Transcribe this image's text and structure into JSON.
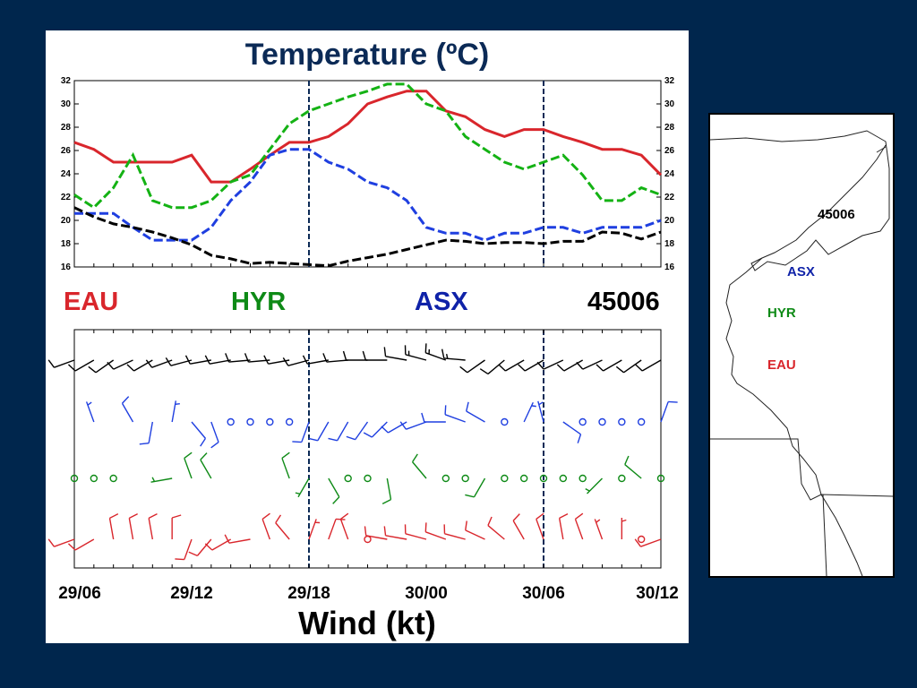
{
  "temperature_title": "Temperature (ºC)",
  "wind_title": "Wind (kt)",
  "colors": {
    "background": "#00264d",
    "EAU": "#d9262c",
    "HYR": "#0e8a16",
    "ASX": "#0f22a8",
    "45006": "#000000"
  },
  "station_labels": [
    {
      "text": "EAU",
      "color": "#d9262c"
    },
    {
      "text": "HYR",
      "color": "#0e8a16"
    },
    {
      "text": "ASX",
      "color": "#0f22a8"
    },
    {
      "text": "45006",
      "color": "#000000"
    }
  ],
  "x_tick_labels": [
    "29/06",
    "29/12",
    "29/18",
    "30/00",
    "30/06",
    "30/12"
  ],
  "map": {
    "labels": [
      {
        "text": "45006",
        "color": "#000000"
      },
      {
        "text": "ASX",
        "color": "#0f22a8"
      },
      {
        "text": "HYR",
        "color": "#0e8a16"
      },
      {
        "text": "EAU",
        "color": "#d9262c"
      }
    ]
  },
  "chart_data": [
    {
      "type": "line",
      "title": "Temperature (ºC)",
      "x": [
        0,
        1,
        2,
        3,
        4,
        5,
        6,
        7,
        8,
        9,
        10,
        11,
        12,
        13,
        14,
        15,
        16,
        17,
        18,
        19,
        20,
        21,
        22,
        23,
        24,
        25,
        26,
        27,
        28,
        29,
        30
      ],
      "x_tick_labels": [
        "29/06",
        "29/12",
        "29/18",
        "30/00",
        "30/06",
        "30/12"
      ],
      "ylim": [
        16,
        32
      ],
      "yticks": [
        16,
        18,
        20,
        22,
        24,
        26,
        28,
        30,
        32
      ],
      "vertical_markers": [
        12,
        24
      ],
      "series": [
        {
          "name": "EAU",
          "color": "#d9262c",
          "dashed": false,
          "values": [
            26.7,
            26.1,
            25.0,
            25.0,
            25.0,
            25.0,
            25.6,
            23.3,
            23.3,
            24.4,
            25.6,
            26.7,
            26.7,
            27.2,
            28.3,
            30.0,
            30.6,
            31.1,
            31.1,
            29.4,
            28.9,
            27.8,
            27.2,
            27.8,
            27.8,
            27.2,
            26.7,
            26.1,
            26.1,
            25.6,
            23.9
          ]
        },
        {
          "name": "HYR",
          "color": "#14b214",
          "dashed": true,
          "values": [
            22.2,
            21.1,
            22.8,
            25.6,
            21.7,
            21.1,
            21.1,
            21.7,
            23.3,
            23.9,
            26.1,
            28.3,
            29.4,
            30.0,
            30.6,
            31.1,
            31.7,
            31.7,
            30.0,
            29.4,
            27.2,
            26.1,
            25.0,
            24.4,
            25.0,
            25.6,
            23.9,
            21.7,
            21.7,
            22.8,
            22.2
          ]
        },
        {
          "name": "ASX",
          "color": "#1f3fe0",
          "dashed": true,
          "values": [
            20.6,
            20.6,
            20.6,
            19.4,
            18.3,
            18.3,
            18.3,
            19.4,
            21.7,
            23.3,
            25.6,
            26.1,
            26.1,
            25.0,
            24.4,
            23.3,
            22.8,
            21.7,
            19.4,
            18.9,
            18.9,
            18.3,
            18.9,
            18.9,
            19.4,
            19.4,
            18.9,
            19.4,
            19.4,
            19.4,
            20.0
          ]
        },
        {
          "name": "45006",
          "color": "#000000",
          "dashed": true,
          "values": [
            21.1,
            20.3,
            19.7,
            19.4,
            19.0,
            18.5,
            17.9,
            17.0,
            16.7,
            16.3,
            16.4,
            16.3,
            16.2,
            16.1,
            16.5,
            16.8,
            17.1,
            17.5,
            17.9,
            18.3,
            18.2,
            18.0,
            18.1,
            18.1,
            18.0,
            18.2,
            18.2,
            19.0,
            18.9,
            18.4,
            19.0
          ]
        }
      ]
    },
    {
      "type": "scatter",
      "title": "Wind (kt)",
      "x_tick_labels": [
        "29/06",
        "29/12",
        "29/18",
        "30/00",
        "30/06",
        "30/12"
      ],
      "vertical_markers": [
        12,
        24
      ],
      "rows": [
        "45006",
        "ASX",
        "HYR",
        "EAU"
      ],
      "series": [
        {
          "name": "45006",
          "color": "#000000",
          "x": [
            0,
            1,
            2,
            3,
            4,
            5,
            6,
            7,
            8,
            9,
            10,
            11,
            12,
            13,
            14,
            15,
            16,
            17,
            18,
            19,
            20,
            21,
            22,
            23,
            24,
            25,
            26,
            27,
            28,
            29,
            30
          ],
          "direction": [
            250,
            240,
            235,
            245,
            240,
            250,
            255,
            260,
            260,
            265,
            265,
            260,
            255,
            260,
            265,
            270,
            270,
            280,
            285,
            290,
            275,
            235,
            230,
            240,
            240,
            245,
            240,
            245,
            240,
            235,
            240
          ],
          "speed": [
            10,
            10,
            10,
            10,
            10,
            10,
            10,
            10,
            10,
            10,
            10,
            10,
            10,
            10,
            10,
            10,
            10,
            10,
            15,
            15,
            15,
            10,
            10,
            10,
            10,
            10,
            10,
            10,
            10,
            10,
            10
          ]
        },
        {
          "name": "ASX",
          "color": "#1f3fe0",
          "x": [
            1,
            3,
            4,
            5,
            6,
            7,
            8,
            9,
            10,
            11,
            12,
            13,
            14,
            15,
            16,
            17,
            18,
            19,
            20,
            21,
            22,
            23,
            24,
            25,
            26,
            27,
            28,
            29,
            30
          ],
          "direction": [
            340,
            330,
            190,
            10,
            140,
            160,
            0,
            0,
            0,
            0,
            200,
            210,
            210,
            215,
            225,
            240,
            250,
            270,
            290,
            300,
            0,
            25,
            345,
            125,
            0,
            0,
            0,
            0,
            20
          ],
          "speed": [
            5,
            10,
            10,
            5,
            10,
            10,
            0,
            0,
            0,
            0,
            10,
            10,
            10,
            10,
            10,
            10,
            10,
            10,
            10,
            10,
            0,
            5,
            5,
            10,
            0,
            0,
            0,
            0,
            10
          ]
        },
        {
          "name": "HYR",
          "color": "#0e8a16",
          "x": [
            0,
            1,
            2,
            5,
            6,
            7,
            11,
            12,
            13,
            14,
            15,
            16,
            18,
            19,
            20,
            21,
            22,
            23,
            24,
            25,
            26,
            27,
            28,
            29,
            30
          ],
          "direction": [
            0,
            0,
            0,
            260,
            340,
            330,
            340,
            210,
            150,
            0,
            0,
            170,
            320,
            0,
            0,
            210,
            0,
            0,
            0,
            0,
            0,
            225,
            0,
            310,
            0
          ],
          "speed": [
            0,
            0,
            0,
            5,
            10,
            10,
            10,
            5,
            10,
            0,
            0,
            10,
            10,
            0,
            0,
            10,
            0,
            0,
            0,
            0,
            0,
            5,
            0,
            10,
            0
          ],
          "calm": true
        },
        {
          "name": "EAU",
          "color": "#d9262c",
          "x": [
            0,
            1,
            2,
            3,
            4,
            5,
            6,
            7,
            8,
            9,
            10,
            11,
            12,
            13,
            14,
            15,
            16,
            17,
            18,
            19,
            20,
            21,
            22,
            23,
            24,
            25,
            26,
            27,
            28,
            29,
            30
          ],
          "direction": [
            250,
            240,
            350,
            350,
            350,
            0,
            200,
            220,
            240,
            260,
            340,
            320,
            20,
            20,
            340,
            0,
            280,
            280,
            285,
            290,
            285,
            295,
            310,
            330,
            340,
            350,
            340,
            340,
            0,
            0,
            250
          ],
          "speed": [
            10,
            10,
            10,
            10,
            10,
            10,
            10,
            10,
            10,
            10,
            10,
            10,
            5,
            10,
            10,
            0,
            10,
            10,
            10,
            10,
            10,
            10,
            10,
            10,
            10,
            10,
            10,
            5,
            5,
            0,
            10
          ]
        }
      ]
    }
  ]
}
